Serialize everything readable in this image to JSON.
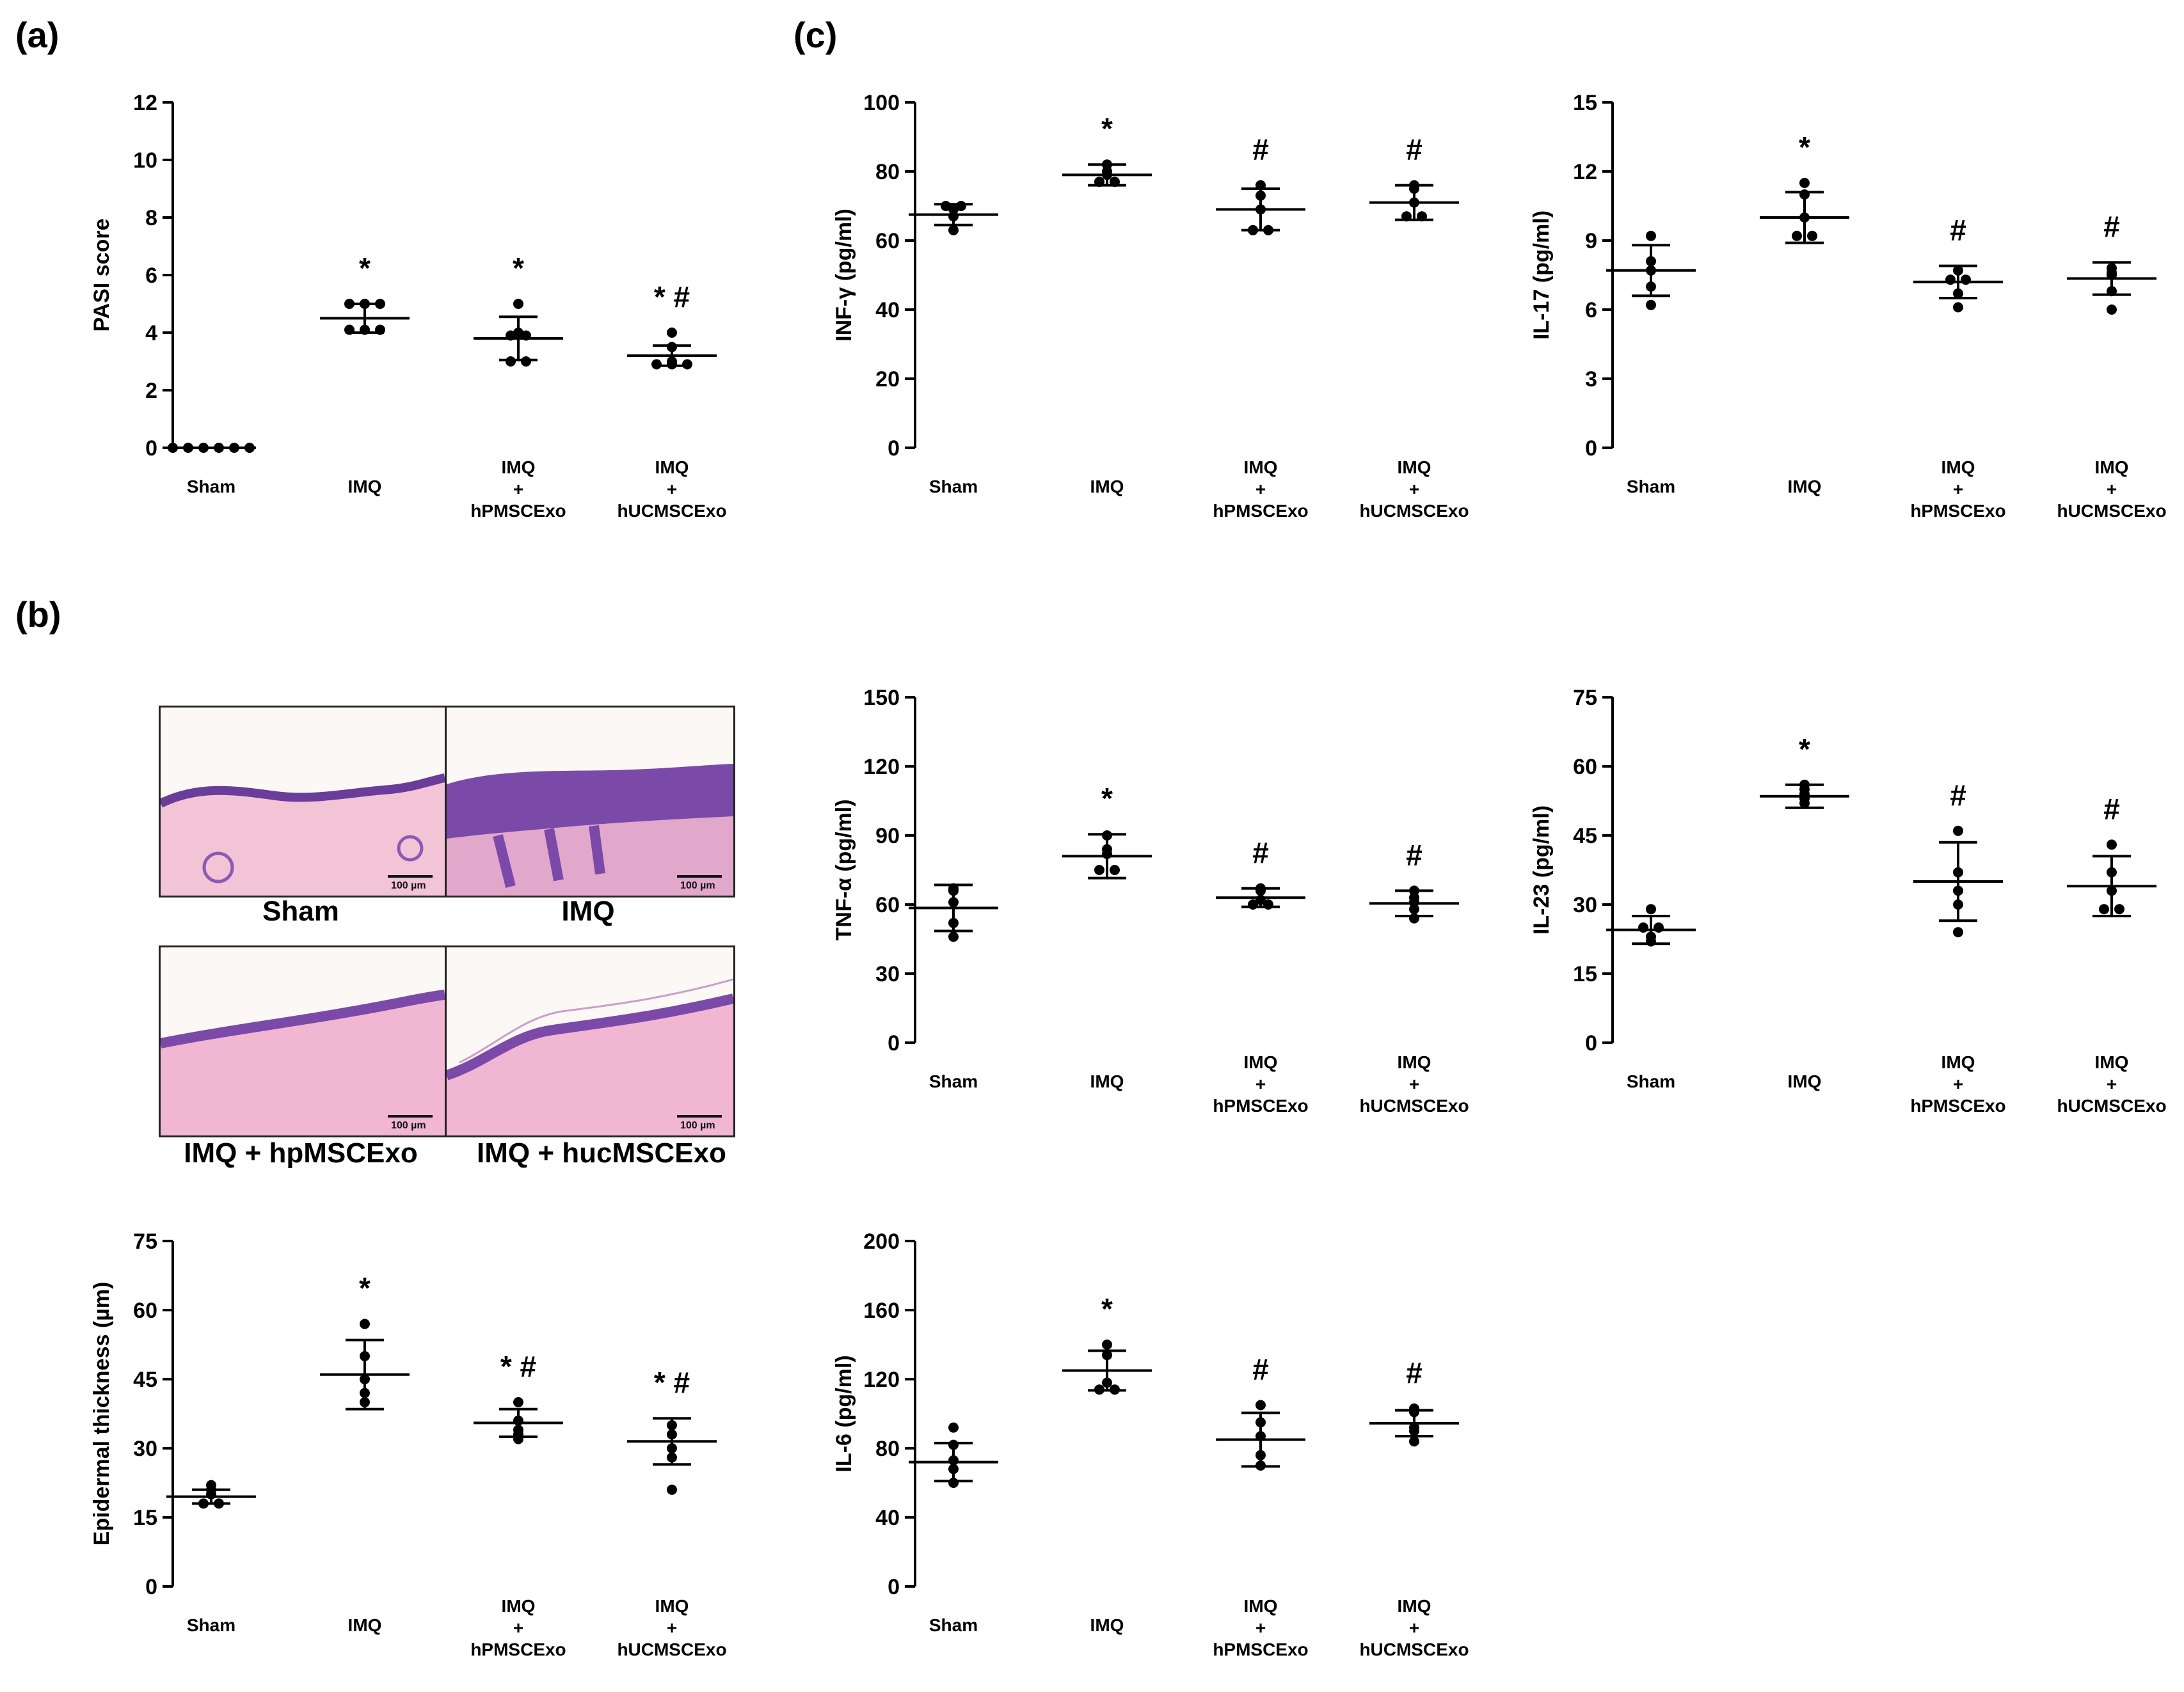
{
  "panels": {
    "a": "(a)",
    "b": "(b)",
    "c": "(c)"
  },
  "groups": [
    "Sham",
    "IMQ",
    "IMQ\n+\nhPMSCExo",
    "IMQ\n+\nhUCMSCExo"
  ],
  "histology": {
    "captions": [
      "Sham",
      "IMQ",
      "IMQ + hpMSCExo",
      "IMQ + hucMSCExo"
    ],
    "scale_label": "100 µm",
    "colors": {
      "dermis": "#f3c4d6",
      "epidermis": "#7b4aa8",
      "background": "#fbf8f6"
    }
  },
  "chart_data": [
    {
      "id": "pasi",
      "type": "scatter",
      "ylabel": "PASI score",
      "ylim": [
        0,
        12
      ],
      "yticks": [
        0,
        2,
        4,
        6,
        8,
        10,
        12
      ],
      "categories": [
        "Sham",
        "IMQ",
        "IMQ\n+\nhPMSCExo",
        "IMQ\n+\nhUCMSCExo"
      ],
      "points": [
        [
          0,
          0,
          0,
          0,
          0,
          0
        ],
        [
          4.1,
          4.1,
          4.1,
          5,
          5,
          5
        ],
        [
          3,
          3,
          3.9,
          3.9,
          4,
          5
        ],
        [
          2.9,
          2.9,
          2.9,
          3,
          3.5,
          4
        ]
      ],
      "mean": [
        0,
        4.5,
        3.8,
        3.2
      ],
      "sd": [
        0,
        0.5,
        0.75,
        0.35
      ],
      "annotations": [
        "",
        "*",
        "*",
        "* #"
      ]
    },
    {
      "id": "epidermal",
      "type": "scatter",
      "ylabel": "Epidermal thickness (µm)",
      "ylim": [
        0,
        75
      ],
      "yticks": [
        0,
        15,
        30,
        45,
        60,
        75
      ],
      "categories": [
        "Sham",
        "IMQ",
        "IMQ\n+\nhPMSCExo",
        "IMQ\n+\nhUCMSCExo"
      ],
      "points": [
        [
          18,
          18,
          20,
          21,
          22
        ],
        [
          40,
          42,
          45,
          50,
          57
        ],
        [
          32,
          33,
          34,
          36,
          40
        ],
        [
          21,
          28,
          30,
          33,
          35
        ]
      ],
      "mean": [
        19.5,
        46,
        35.5,
        31.5
      ],
      "sd": [
        1.5,
        7.5,
        3,
        5
      ],
      "annotations": [
        "",
        "*",
        "* #",
        "* #"
      ]
    },
    {
      "id": "infg",
      "type": "scatter",
      "ylabel": "INF-γ (pg/ml)",
      "ylim": [
        0,
        100
      ],
      "yticks": [
        0,
        20,
        40,
        60,
        80,
        100
      ],
      "categories": [
        "Sham",
        "IMQ",
        "IMQ\n+\nhPMSCExo",
        "IMQ\n+\nhUCMSCExo"
      ],
      "points": [
        [
          63,
          67,
          69,
          70,
          70
        ],
        [
          77,
          77,
          79,
          80,
          82
        ],
        [
          63,
          63,
          69,
          73,
          76
        ],
        [
          67,
          67,
          71,
          75,
          76
        ]
      ],
      "mean": [
        67.5,
        79,
        69,
        71
      ],
      "sd": [
        3,
        3,
        6,
        5
      ],
      "annotations": [
        "",
        "*",
        "#",
        "#"
      ]
    },
    {
      "id": "il17",
      "type": "scatter",
      "ylabel": "IL-17 (pg/ml)",
      "ylim": [
        0,
        15
      ],
      "yticks": [
        0,
        3,
        6,
        9,
        12,
        15
      ],
      "categories": [
        "Sham",
        "IMQ",
        "IMQ\n+\nhPMSCExo",
        "IMQ\n+\nhUCMSCExo"
      ],
      "points": [
        [
          6.2,
          7,
          7.7,
          8.1,
          9.2
        ],
        [
          9.2,
          9.2,
          10,
          11,
          11.5
        ],
        [
          6.1,
          6.7,
          7.3,
          7.3,
          7.7
        ],
        [
          6,
          6.8,
          7.5,
          7.6,
          7.8
        ]
      ],
      "mean": [
        7.7,
        10,
        7.2,
        7.35
      ],
      "sd": [
        1.1,
        1.1,
        0.7,
        0.7
      ],
      "annotations": [
        "",
        "*",
        "#",
        "#"
      ]
    },
    {
      "id": "tnfa",
      "type": "scatter",
      "ylabel": "TNF-α (pg/ml)",
      "ylim": [
        0,
        150
      ],
      "yticks": [
        0,
        30,
        60,
        90,
        120,
        150
      ],
      "categories": [
        "Sham",
        "IMQ",
        "IMQ\n+\nhPMSCExo",
        "IMQ\n+\nhUCMSCExo"
      ],
      "points": [
        [
          46,
          52,
          61,
          66,
          67
        ],
        [
          75,
          75,
          82,
          84,
          90
        ],
        [
          60,
          60,
          62,
          66,
          67
        ],
        [
          54,
          58,
          61,
          63,
          66
        ]
      ],
      "mean": [
        58.5,
        81,
        63,
        60.5
      ],
      "sd": [
        10,
        9.5,
        4,
        5.5
      ],
      "annotations": [
        "",
        "*",
        "#",
        "#"
      ]
    },
    {
      "id": "il23",
      "type": "scatter",
      "ylabel": "IL-23 (pg/ml)",
      "ylim": [
        0,
        75
      ],
      "yticks": [
        0,
        15,
        30,
        45,
        60,
        75
      ],
      "categories": [
        "Sham",
        "IMQ",
        "IMQ\n+\nhPMSCExo",
        "IMQ\n+\nhUCMSCExo"
      ],
      "points": [
        [
          22,
          23,
          25,
          25,
          29
        ],
        [
          52,
          53,
          54,
          55,
          56
        ],
        [
          24,
          30,
          33,
          37,
          46
        ],
        [
          29,
          29,
          33,
          37,
          43
        ]
      ],
      "mean": [
        24.5,
        53.5,
        35,
        34
      ],
      "sd": [
        3,
        2.5,
        8.5,
        6.5
      ],
      "annotations": [
        "",
        "*",
        "#",
        "#"
      ]
    },
    {
      "id": "il6",
      "type": "scatter",
      "ylabel": "IL-6 (pg/ml)",
      "ylim": [
        0,
        200
      ],
      "yticks": [
        0,
        40,
        80,
        120,
        160,
        200
      ],
      "categories": [
        "Sham",
        "IMQ",
        "IMQ\n+\nhPMSCExo",
        "IMQ\n+\nhUCMSCExo"
      ],
      "points": [
        [
          60,
          68,
          73,
          82,
          92
        ],
        [
          114,
          114,
          118,
          134,
          140
        ],
        [
          70,
          76,
          87,
          95,
          105
        ],
        [
          84,
          90,
          92,
          101,
          103
        ]
      ],
      "mean": [
        72,
        125,
        85,
        94.5
      ],
      "sd": [
        11,
        11.5,
        15.5,
        7.5
      ],
      "annotations": [
        "",
        "*",
        "#",
        "#"
      ]
    }
  ]
}
